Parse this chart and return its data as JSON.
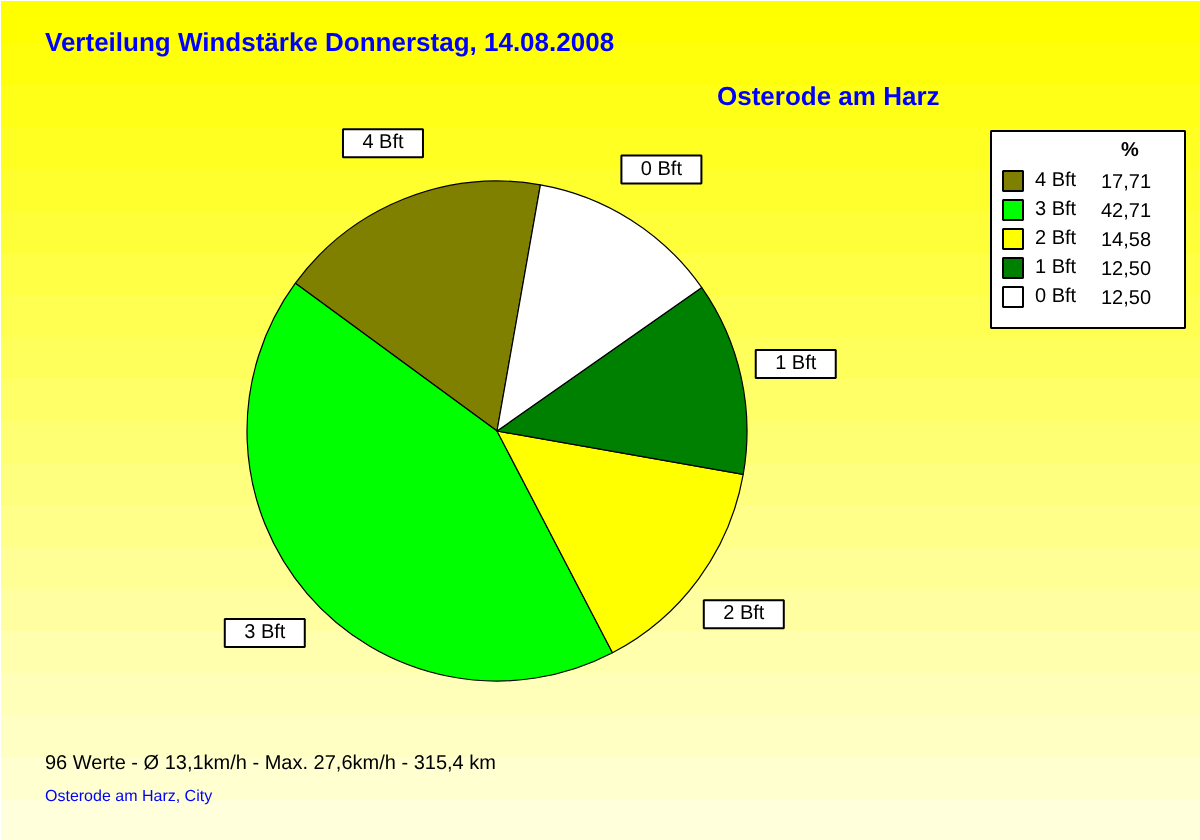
{
  "chart_data": {
    "type": "pie",
    "title": "Verteilung Windstärke  Donnerstag, 14.08.2008",
    "subtitle": "Osterode am Harz",
    "categories": [
      "4 Bft",
      "3 Bft",
      "2 Bft",
      "1 Bft",
      "0 Bft"
    ],
    "values": [
      17.71,
      42.71,
      14.58,
      12.5,
      12.5
    ],
    "value_labels": [
      "17,71",
      "42,71",
      "14,58",
      "12,50",
      "12,50"
    ],
    "colors": [
      "#808000",
      "#00ff00",
      "#ffff00",
      "#008000",
      "#ffffff"
    ],
    "legend_title": "%",
    "legend": "top right",
    "annotations": [
      "96 Werte   -   Ø 13,1km/h  -  Max. 27,6km/h   -   315,4 km",
      "Osterode am Harz, City"
    ]
  }
}
